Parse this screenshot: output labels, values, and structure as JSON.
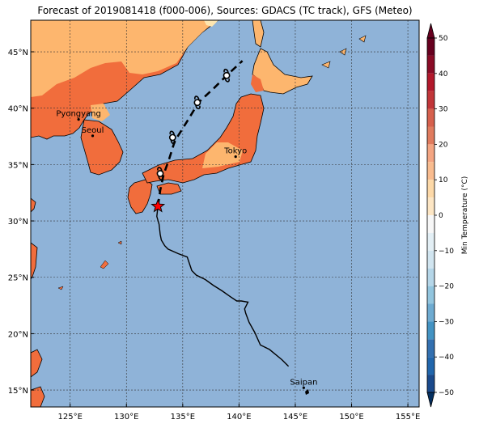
{
  "title": "Forecast of 2019081418 (f000-006), Sources: GDACS (TC track), GFS (Meteo)",
  "map": {
    "lon_ticks": [
      "125°E",
      "130°E",
      "135°E",
      "140°E",
      "145°E",
      "150°E",
      "155°E"
    ],
    "lat_ticks": [
      "45°N",
      "40°N",
      "35°N",
      "30°N",
      "25°N",
      "20°N",
      "15°N"
    ],
    "lon_range": [
      121.5,
      156
    ],
    "lat_range": [
      13.5,
      47.8
    ],
    "cities": [
      {
        "name": "Pyongyang",
        "lon": 125.75,
        "lat": 39.0
      },
      {
        "name": "Seoul",
        "lon": 127.0,
        "lat": 37.55
      },
      {
        "name": "Tokyo",
        "lon": 139.7,
        "lat": 35.7
      },
      {
        "name": "Saipan",
        "lon": 145.75,
        "lat": 15.2
      }
    ],
    "storm_current": {
      "lon": 132.8,
      "lat": 31.3
    },
    "past_track": [
      [
        144.4,
        17.1
      ],
      [
        143.8,
        17.7
      ],
      [
        142.7,
        18.6
      ],
      [
        141.9,
        19.0
      ],
      [
        141.4,
        20.1
      ],
      [
        140.9,
        21.0
      ],
      [
        140.6,
        21.8
      ],
      [
        140.5,
        22.2
      ],
      [
        140.8,
        22.8
      ],
      [
        140.2,
        22.9
      ],
      [
        139.8,
        22.9
      ],
      [
        139.2,
        23.3
      ],
      [
        138.5,
        23.8
      ],
      [
        137.7,
        24.3
      ],
      [
        137.0,
        24.8
      ],
      [
        136.2,
        25.2
      ],
      [
        135.8,
        25.6
      ],
      [
        135.4,
        26.8
      ],
      [
        134.6,
        27.1
      ],
      [
        133.7,
        27.5
      ],
      [
        133.4,
        27.8
      ],
      [
        133.1,
        28.3
      ],
      [
        133.0,
        28.8
      ],
      [
        132.9,
        29.7
      ],
      [
        132.7,
        30.4
      ],
      [
        132.8,
        31.3
      ]
    ],
    "forecast_track": [
      [
        132.8,
        31.3
      ],
      [
        133.0,
        32.7
      ],
      [
        133.3,
        34.1
      ],
      [
        133.8,
        35.5
      ],
      [
        134.3,
        37.1
      ],
      [
        135.5,
        39.0
      ],
      [
        136.4,
        40.5
      ],
      [
        137.8,
        41.8
      ],
      [
        138.9,
        42.9
      ],
      [
        140.3,
        44.2
      ]
    ],
    "forecast_points": [
      [
        133.0,
        34.2
      ],
      [
        134.1,
        37.4
      ],
      [
        136.3,
        40.5
      ],
      [
        138.9,
        42.9
      ]
    ]
  },
  "colorbar": {
    "label": "Min Temperature (°C)",
    "ticks": [
      "50",
      "40",
      "30",
      "20",
      "10",
      "0",
      "−10",
      "−20",
      "−30",
      "−40",
      "−50"
    ],
    "colors": [
      "#67001f",
      "#b2182b",
      "#d6604d",
      "#f4a582",
      "#fdd9a8",
      "#f7f7f7",
      "#d1e5f0",
      "#92c5de",
      "#4393c3",
      "#2166ac",
      "#053061"
    ]
  },
  "colors": {
    "ocean": "#8fb3d8",
    "land_warm": "#f16d3c",
    "land_cool": "#fdb66e",
    "land_pale": "#fee6b0",
    "storm_marker": "#ff0000"
  }
}
